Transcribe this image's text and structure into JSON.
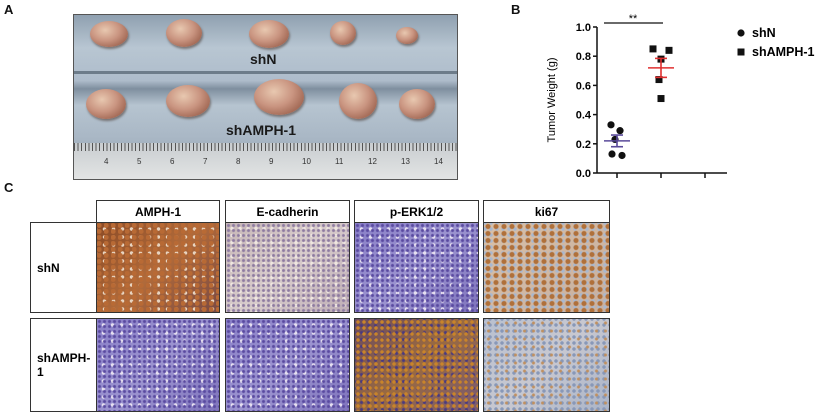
{
  "panels": {
    "a": "A",
    "b": "B",
    "c": "C"
  },
  "photo": {
    "top_label": "shN",
    "bottom_label": "shAMPH-1",
    "ruler_numbers": [
      "4",
      "5",
      "6",
      "7",
      "8",
      "9",
      "10",
      "11",
      "12",
      "13",
      "14"
    ]
  },
  "chart_data": {
    "type": "scatter",
    "ylabel": "Tumor Weight (g)",
    "ylim": [
      0,
      1.0
    ],
    "yticks": [
      "0.0",
      "0.2",
      "0.4",
      "0.6",
      "0.8",
      "1.0"
    ],
    "grid": false,
    "legend_position": "right",
    "significance": "**",
    "series": [
      {
        "name": "shN",
        "marker": "circle",
        "color": "#111111",
        "values": [
          0.33,
          0.29,
          0.23,
          0.13,
          0.12
        ],
        "mean": 0.22,
        "sem": 0.04,
        "mean_color": "#5a4a9a"
      },
      {
        "name": "shAMPH-1",
        "marker": "square",
        "color": "#111111",
        "values": [
          0.85,
          0.84,
          0.78,
          0.64,
          0.51
        ],
        "mean": 0.72,
        "sem": 0.065,
        "mean_color": "#e03030"
      }
    ]
  },
  "ihc": {
    "columns": [
      "AMPH-1",
      "E-cadherin",
      "p-ERK1/2",
      "ki67"
    ],
    "rows": [
      "shN",
      "shAMPH-1"
    ]
  }
}
